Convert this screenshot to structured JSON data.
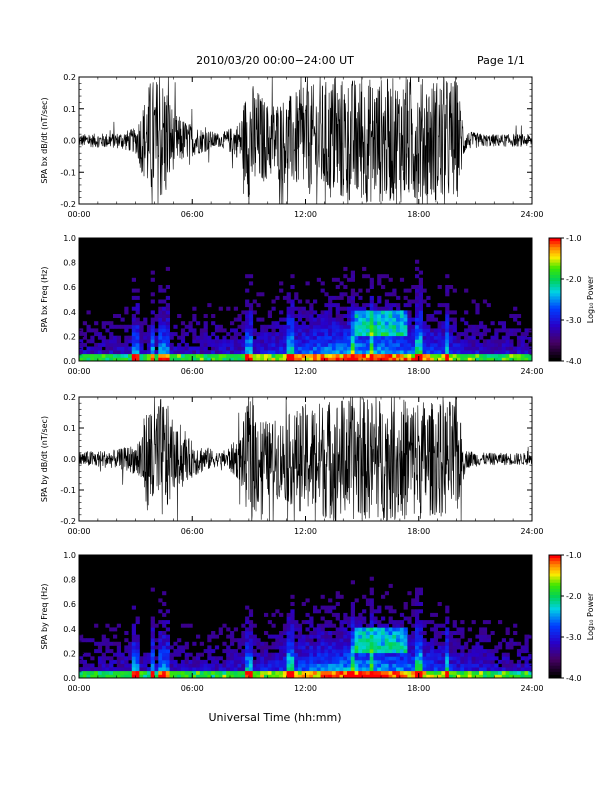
{
  "header": {
    "title": "2010/03/20   00:00−24:00 UT",
    "page": "Page 1/1"
  },
  "xaxis": {
    "label": "Universal Time (hh:mm)",
    "ticks": [
      "00:00",
      "06:00",
      "12:00",
      "18:00",
      "24:00"
    ]
  },
  "colorbar": {
    "label": "Log₁₀ Power",
    "ticks": [
      "-1.0",
      "-2.0",
      "-3.0",
      "-4.0"
    ]
  },
  "chart_data": [
    {
      "type": "line",
      "ylabel": "SPA bx dB/dt (nT/sec)",
      "xlim": [
        0,
        24
      ],
      "ylim": [
        -0.2,
        0.2
      ],
      "yticks": [
        "0.2",
        "0.1",
        "0.0",
        "-0.1",
        "-0.2"
      ],
      "envelope": {
        "hours": [
          0,
          2,
          3,
          3.8,
          4.0,
          4.6,
          5.0,
          6.0,
          7.5,
          8.5,
          9.0,
          10.0,
          11.0,
          12.0,
          13.5,
          14.5,
          15.5,
          17.0,
          18.0,
          19.0,
          20.0,
          20.5,
          21.5,
          24.0
        ],
        "amplitude": [
          0.02,
          0.025,
          0.04,
          0.2,
          0.2,
          0.2,
          0.09,
          0.05,
          0.02,
          0.06,
          0.2,
          0.12,
          0.14,
          0.17,
          0.2,
          0.2,
          0.2,
          0.2,
          0.2,
          0.2,
          0.2,
          0.03,
          0.02,
          0.02
        ]
      }
    },
    {
      "type": "heatmap",
      "ylabel": "SPA bx Freq (Hz)",
      "xlim": [
        0,
        24
      ],
      "ylim": [
        0.0,
        1.0
      ],
      "yticks": [
        "1.0",
        "0.8",
        "0.6",
        "0.4",
        "0.2",
        "0.0"
      ],
      "zlim": [
        -4.0,
        -1.0
      ],
      "vertical_bands_hours": [
        3.0,
        3.9,
        4.3,
        4.6,
        9.0,
        11.2,
        14.5,
        15.5,
        18.0,
        19.5
      ],
      "hot_region": {
        "hours": [
          14.5,
          17.5
        ],
        "freq_hz": [
          0.2,
          0.4
        ]
      }
    },
    {
      "type": "line",
      "ylabel": "SPA by dB/dt (nT/sec)",
      "xlim": [
        0,
        24
      ],
      "ylim": [
        -0.2,
        0.2
      ],
      "yticks": [
        "0.2",
        "0.1",
        "0.0",
        "-0.1",
        "-0.2"
      ],
      "envelope": {
        "hours": [
          0,
          2,
          3,
          3.8,
          4.0,
          4.6,
          5.0,
          6.0,
          7.5,
          8.5,
          9.0,
          10.0,
          11.0,
          12.0,
          13.5,
          14.5,
          15.5,
          17.0,
          18.0,
          19.0,
          20.0,
          20.5,
          21.5,
          24.0
        ],
        "amplitude": [
          0.025,
          0.03,
          0.05,
          0.2,
          0.2,
          0.2,
          0.1,
          0.06,
          0.02,
          0.07,
          0.2,
          0.12,
          0.14,
          0.18,
          0.2,
          0.2,
          0.2,
          0.2,
          0.2,
          0.18,
          0.2,
          0.03,
          0.02,
          0.02
        ]
      }
    },
    {
      "type": "heatmap",
      "ylabel": "SPA by Freq (Hz)",
      "xlim": [
        0,
        24
      ],
      "ylim": [
        0.0,
        1.0
      ],
      "yticks": [
        "1.0",
        "0.8",
        "0.6",
        "0.4",
        "0.2",
        "0.0"
      ],
      "zlim": [
        -4.0,
        -1.0
      ],
      "vertical_bands_hours": [
        3.0,
        3.9,
        4.3,
        4.6,
        9.0,
        11.2,
        14.5,
        15.5,
        18.0,
        19.5
      ],
      "hot_region": {
        "hours": [
          14.5,
          17.5
        ],
        "freq_hz": [
          0.2,
          0.4
        ]
      }
    }
  ]
}
